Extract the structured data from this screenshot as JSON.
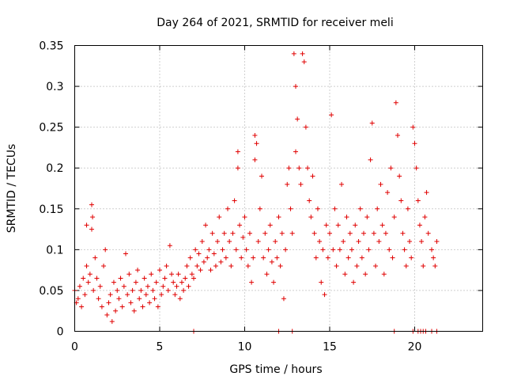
{
  "chart_data": {
    "type": "scatter",
    "title": "Day 264 of 2021, SRMTID for receiver meli",
    "xlabel": "GPS time / hours",
    "ylabel": "SRMTID / TECUs",
    "xlim": [
      0,
      24
    ],
    "ylim": [
      0,
      0.35
    ],
    "xticks": [
      0,
      5,
      10,
      15,
      20
    ],
    "xtick_labels": [
      "0",
      "5",
      "10",
      "15",
      "20"
    ],
    "yticks": [
      0,
      0.05,
      0.1,
      0.15,
      0.2,
      0.25,
      0.3,
      0.35
    ],
    "ytick_labels": [
      "0",
      "0.05",
      "0.1",
      "0.15",
      "0.2",
      "0.25",
      "0.3",
      "0.35"
    ],
    "grid": true,
    "marker": "plus",
    "color": "#e00000",
    "series": [
      {
        "name": "SRMTID",
        "points": [
          [
            0.0,
            0.05
          ],
          [
            0.1,
            0.035
          ],
          [
            0.2,
            0.04
          ],
          [
            0.3,
            0.055
          ],
          [
            0.4,
            0.03
          ],
          [
            0.5,
            0.065
          ],
          [
            0.6,
            0.045
          ],
          [
            0.7,
            0.08
          ],
          [
            0.8,
            0.06
          ],
          [
            0.9,
            0.07
          ],
          [
            1.0,
            0.155
          ],
          [
            1.05,
            0.14
          ],
          [
            1.0,
            0.125
          ],
          [
            0.7,
            0.13
          ],
          [
            1.1,
            0.05
          ],
          [
            1.2,
            0.09
          ],
          [
            1.3,
            0.065
          ],
          [
            1.4,
            0.04
          ],
          [
            1.5,
            0.055
          ],
          [
            1.6,
            0.03
          ],
          [
            1.7,
            0.08
          ],
          [
            1.8,
            0.1
          ],
          [
            1.9,
            0.02
          ],
          [
            2.0,
            0.035
          ],
          [
            2.1,
            0.045
          ],
          [
            2.2,
            0.012
          ],
          [
            2.3,
            0.06
          ],
          [
            2.4,
            0.025
          ],
          [
            2.5,
            0.05
          ],
          [
            2.6,
            0.04
          ],
          [
            2.7,
            0.065
          ],
          [
            2.8,
            0.03
          ],
          [
            2.9,
            0.055
          ],
          [
            3.0,
            0.095
          ],
          [
            3.1,
            0.045
          ],
          [
            3.2,
            0.07
          ],
          [
            3.3,
            0.035
          ],
          [
            3.4,
            0.05
          ],
          [
            3.5,
            0.025
          ],
          [
            3.6,
            0.06
          ],
          [
            3.7,
            0.075
          ],
          [
            3.8,
            0.04
          ],
          [
            3.9,
            0.05
          ],
          [
            4.0,
            0.03
          ],
          [
            4.1,
            0.065
          ],
          [
            4.2,
            0.045
          ],
          [
            4.3,
            0.055
          ],
          [
            4.4,
            0.035
          ],
          [
            4.5,
            0.07
          ],
          [
            4.6,
            0.05
          ],
          [
            4.7,
            0.04
          ],
          [
            4.8,
            0.06
          ],
          [
            4.9,
            0.03
          ],
          [
            5.0,
            0.075
          ],
          [
            5.1,
            0.045
          ],
          [
            5.2,
            0.055
          ],
          [
            5.3,
            0.065
          ],
          [
            5.4,
            0.08
          ],
          [
            5.5,
            0.05
          ],
          [
            5.6,
            0.105
          ],
          [
            5.7,
            0.07
          ],
          [
            5.8,
            0.06
          ],
          [
            5.9,
            0.045
          ],
          [
            6.0,
            0.055
          ],
          [
            6.1,
            0.07
          ],
          [
            6.2,
            0.04
          ],
          [
            6.3,
            0.06
          ],
          [
            6.4,
            0.05
          ],
          [
            6.5,
            0.065
          ],
          [
            6.6,
            0.08
          ],
          [
            6.7,
            0.055
          ],
          [
            6.8,
            0.09
          ],
          [
            6.9,
            0.07
          ],
          [
            7.0,
            0.065
          ],
          [
            7.1,
            0.1
          ],
          [
            7.2,
            0.08
          ],
          [
            7.3,
            0.095
          ],
          [
            7.4,
            0.075
          ],
          [
            7.5,
            0.11
          ],
          [
            7.6,
            0.085
          ],
          [
            7.7,
            0.13
          ],
          [
            7.8,
            0.09
          ],
          [
            7.9,
            0.1
          ],
          [
            8.0,
            0.075
          ],
          [
            8.1,
            0.12
          ],
          [
            8.2,
            0.095
          ],
          [
            8.3,
            0.08
          ],
          [
            8.4,
            0.11
          ],
          [
            8.5,
            0.14
          ],
          [
            8.6,
            0.085
          ],
          [
            8.7,
            0.1
          ],
          [
            8.8,
            0.12
          ],
          [
            8.9,
            0.09
          ],
          [
            9.0,
            0.15
          ],
          [
            9.1,
            0.11
          ],
          [
            9.2,
            0.08
          ],
          [
            9.3,
            0.12
          ],
          [
            9.4,
            0.16
          ],
          [
            9.5,
            0.1
          ],
          [
            9.6,
            0.22
          ],
          [
            9.6,
            0.2
          ],
          [
            9.7,
            0.13
          ],
          [
            9.8,
            0.09
          ],
          [
            9.9,
            0.115
          ],
          [
            10.0,
            0.14
          ],
          [
            10.1,
            0.1
          ],
          [
            10.2,
            0.08
          ],
          [
            10.3,
            0.12
          ],
          [
            10.4,
            0.06
          ],
          [
            10.5,
            0.09
          ],
          [
            10.6,
            0.24
          ],
          [
            10.7,
            0.23
          ],
          [
            10.6,
            0.21
          ],
          [
            10.8,
            0.11
          ],
          [
            10.9,
            0.15
          ],
          [
            11.0,
            0.19
          ],
          [
            11.1,
            0.09
          ],
          [
            11.2,
            0.12
          ],
          [
            11.3,
            0.07
          ],
          [
            11.4,
            0.1
          ],
          [
            11.5,
            0.13
          ],
          [
            11.6,
            0.085
          ],
          [
            11.7,
            0.06
          ],
          [
            11.8,
            0.11
          ],
          [
            11.9,
            0.09
          ],
          [
            12.0,
            0.14
          ],
          [
            12.1,
            0.08
          ],
          [
            12.2,
            0.12
          ],
          [
            12.3,
            0.04
          ],
          [
            12.4,
            0.1
          ],
          [
            12.5,
            0.18
          ],
          [
            12.6,
            0.2
          ],
          [
            12.7,
            0.15
          ],
          [
            12.8,
            0.12
          ],
          [
            12.9,
            0.34
          ],
          [
            13.0,
            0.3
          ],
          [
            13.1,
            0.26
          ],
          [
            13.0,
            0.22
          ],
          [
            13.2,
            0.2
          ],
          [
            13.3,
            0.18
          ],
          [
            13.4,
            0.34
          ],
          [
            13.5,
            0.33
          ],
          [
            13.6,
            0.25
          ],
          [
            13.7,
            0.2
          ],
          [
            13.8,
            0.16
          ],
          [
            13.9,
            0.14
          ],
          [
            14.0,
            0.19
          ],
          [
            14.1,
            0.12
          ],
          [
            14.2,
            0.09
          ],
          [
            14.3,
            0.15
          ],
          [
            14.4,
            0.11
          ],
          [
            14.5,
            0.06
          ],
          [
            14.6,
            0.1
          ],
          [
            14.7,
            0.045
          ],
          [
            14.8,
            0.13
          ],
          [
            14.9,
            0.09
          ],
          [
            15.0,
            0.12
          ],
          [
            15.1,
            0.265
          ],
          [
            15.2,
            0.1
          ],
          [
            15.3,
            0.15
          ],
          [
            15.4,
            0.08
          ],
          [
            15.5,
            0.13
          ],
          [
            15.6,
            0.1
          ],
          [
            15.7,
            0.18
          ],
          [
            15.8,
            0.11
          ],
          [
            15.9,
            0.07
          ],
          [
            16.0,
            0.14
          ],
          [
            16.1,
            0.09
          ],
          [
            16.2,
            0.12
          ],
          [
            16.3,
            0.1
          ],
          [
            16.4,
            0.06
          ],
          [
            16.5,
            0.13
          ],
          [
            16.6,
            0.08
          ],
          [
            16.7,
            0.11
          ],
          [
            16.8,
            0.15
          ],
          [
            16.9,
            0.09
          ],
          [
            17.0,
            0.12
          ],
          [
            17.1,
            0.07
          ],
          [
            17.2,
            0.14
          ],
          [
            17.3,
            0.1
          ],
          [
            17.4,
            0.21
          ],
          [
            17.5,
            0.255
          ],
          [
            17.6,
            0.12
          ],
          [
            17.7,
            0.08
          ],
          [
            17.8,
            0.15
          ],
          [
            17.9,
            0.11
          ],
          [
            18.0,
            0.18
          ],
          [
            18.1,
            0.13
          ],
          [
            18.2,
            0.07
          ],
          [
            18.3,
            0.12
          ],
          [
            18.4,
            0.17
          ],
          [
            18.5,
            0.1
          ],
          [
            18.6,
            0.2
          ],
          [
            18.7,
            0.09
          ],
          [
            18.8,
            0.14
          ],
          [
            18.9,
            0.28
          ],
          [
            19.0,
            0.24
          ],
          [
            19.1,
            0.19
          ],
          [
            19.2,
            0.16
          ],
          [
            19.3,
            0.12
          ],
          [
            19.4,
            0.1
          ],
          [
            19.5,
            0.08
          ],
          [
            19.6,
            0.15
          ],
          [
            19.7,
            0.11
          ],
          [
            19.8,
            0.09
          ],
          [
            19.9,
            0.25
          ],
          [
            20.0,
            0.23
          ],
          [
            20.1,
            0.2
          ],
          [
            20.2,
            0.16
          ],
          [
            20.3,
            0.13
          ],
          [
            20.4,
            0.11
          ],
          [
            20.5,
            0.08
          ],
          [
            20.6,
            0.14
          ],
          [
            20.7,
            0.17
          ],
          [
            20.8,
            0.12
          ],
          [
            21.0,
            0.1
          ],
          [
            21.1,
            0.09
          ],
          [
            21.2,
            0.08
          ],
          [
            21.3,
            0.11
          ]
        ]
      },
      {
        "name": "zero-values",
        "points": [
          [
            7.0,
            0.0
          ],
          [
            12.0,
            0.0
          ],
          [
            12.8,
            0.0
          ],
          [
            18.8,
            0.0
          ],
          [
            19.9,
            0.0
          ],
          [
            20.2,
            0.0
          ],
          [
            20.35,
            0.0
          ],
          [
            20.5,
            0.0
          ],
          [
            20.65,
            0.0
          ],
          [
            21.0,
            0.0
          ],
          [
            21.3,
            0.0
          ]
        ]
      }
    ]
  }
}
